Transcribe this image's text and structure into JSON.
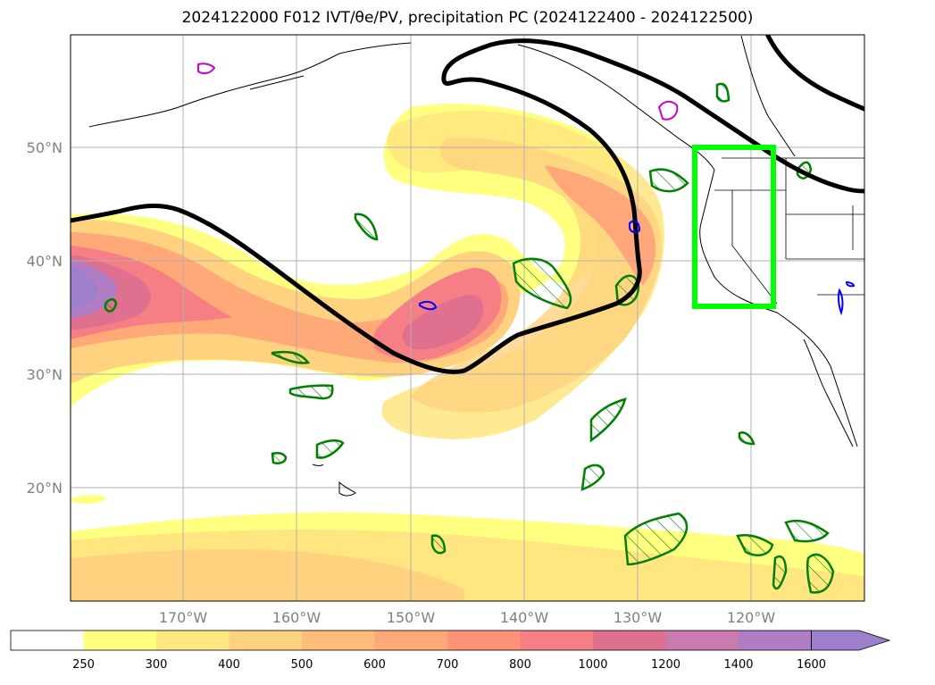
{
  "title": "2024122000 F012 IVT/θe/PV, precipitation PC (2024122400 - 2024122500)",
  "map": {
    "lat_labels": [
      "50°N",
      "40°N",
      "30°N",
      "20°N"
    ],
    "lon_labels": [
      "170°W",
      "160°W",
      "150°W",
      "140°W",
      "130°W",
      "120°W"
    ],
    "grid_color": "#b0b0b0",
    "box_color": "#00ff00",
    "pv_color": "#000000",
    "theta_e_color": "#008000",
    "precip_colors": [
      "#0000ff",
      "#cc00cc"
    ]
  },
  "colorbar": {
    "levels": [
      "250",
      "300",
      "400",
      "500",
      "600",
      "700",
      "800",
      "1000",
      "1200",
      "1400",
      "1600"
    ],
    "colors": [
      "#ffffff",
      "#ffff80",
      "#ffe680",
      "#ffd280",
      "#ffbd7a",
      "#ffa878",
      "#ff9277",
      "#f57f85",
      "#e07090",
      "#c97aaf",
      "#b07cc4",
      "#9e7fcc"
    ],
    "extend": "max"
  }
}
